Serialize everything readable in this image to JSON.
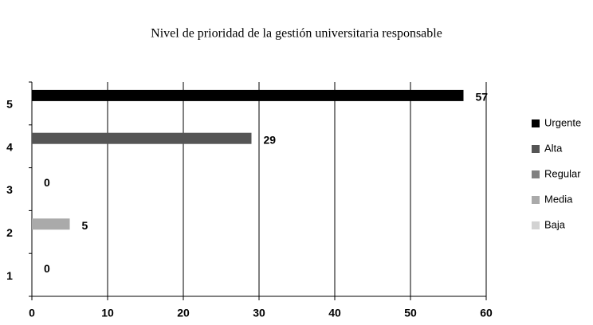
{
  "chart_data": {
    "type": "bar",
    "orientation": "horizontal",
    "title": "Nivel de prioridad de la gestión universitaria responsable",
    "categories": [
      "5",
      "4",
      "3",
      "2",
      "1"
    ],
    "values": [
      57,
      29,
      0,
      5,
      0
    ],
    "colors": [
      "#000000",
      "#555555",
      "#808080",
      "#aaaaaa",
      "#d3d3d3"
    ],
    "legend": [
      "Urgente",
      "Alta",
      "Regular",
      "Media",
      "Baja"
    ],
    "xlim": [
      0,
      60
    ],
    "xticks": [
      0,
      10,
      20,
      30,
      40,
      50,
      60
    ],
    "grid": true
  }
}
